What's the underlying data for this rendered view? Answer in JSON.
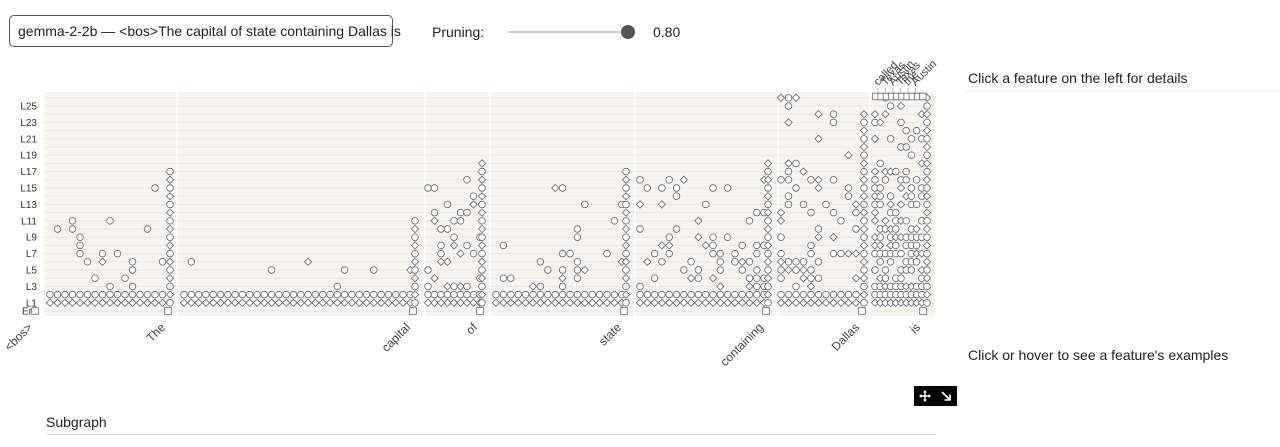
{
  "header": {
    "prompt_select_value": "gemma-2-2b — <bos>The capital of state containing Dallas is",
    "pruning_label": "Pruning:",
    "pruning_value": 0.8,
    "pruning_value_text": "0.80"
  },
  "graph": {
    "layer_labels": [
      "Em",
      "L1",
      "L3",
      "L5",
      "L7",
      "L9",
      "L11",
      "L13",
      "L15",
      "L17",
      "L19",
      "L21",
      "L23",
      "L25"
    ],
    "tokens": [
      "<bos>",
      "The",
      "capital",
      "of",
      "state",
      "containing",
      "Dallas",
      "is"
    ],
    "logit_labels": [
      "called",
      "Texas",
      "Austin",
      "Texas",
      "the",
      "Austin"
    ]
  },
  "details": {
    "title": "Click a feature on the left for details",
    "examples_hint": "Click or hover to see a feature's examples"
  },
  "subgraph": {
    "title": "Subgraph"
  },
  "icons": {
    "move": "move-icon",
    "resize": "resize-icon"
  }
}
